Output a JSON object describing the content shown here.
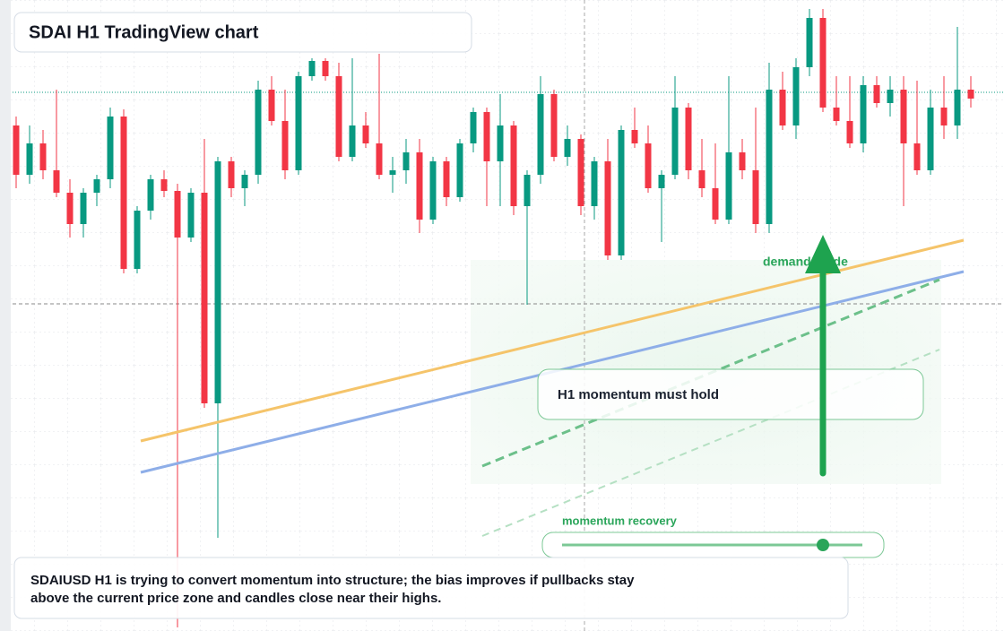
{
  "chart_data": {
    "type": "candlestick",
    "title": "SDAI H1 TradingView chart",
    "annotations": {
      "guide": "demand guide",
      "hold": "H1 momentum must hold",
      "recovery": "momentum recovery"
    },
    "description": [
      "SDAIUSD H1 is trying to convert momentum into structure; the bias improves if pullbacks stay",
      "above the current price zone and candles close near their highs."
    ],
    "up_color": "#089981",
    "down_color": "#f23645",
    "ylim": [
      0,
      700
    ],
    "open": [
      560,
      505,
      540,
      510,
      485,
      450,
      485,
      500,
      570,
      400,
      465,
      500,
      487,
      435,
      485,
      250,
      520,
      490,
      505,
      600,
      565,
      510,
      615,
      632,
      615,
      525,
      560,
      540,
      505,
      510,
      530,
      455,
      520,
      480,
      540,
      575,
      520,
      560,
      470,
      505,
      595,
      525,
      545,
      470,
      520,
      415,
      555,
      540,
      490,
      505,
      580,
      510,
      490,
      455,
      530,
      510,
      450,
      600,
      560,
      625,
      680,
      580,
      565,
      540,
      605,
      585,
      600,
      540,
      510,
      580,
      560,
      600
    ],
    "high": [
      570,
      560,
      555,
      600,
      500,
      490,
      505,
      580,
      578,
      470,
      505,
      510,
      495,
      490,
      545,
      525,
      525,
      510,
      610,
      615,
      600,
      620,
      635,
      635,
      630,
      635,
      575,
      640,
      525,
      545,
      545,
      525,
      525,
      545,
      580,
      580,
      595,
      565,
      510,
      615,
      600,
      560,
      550,
      525,
      545,
      560,
      580,
      560,
      510,
      615,
      585,
      545,
      540,
      615,
      545,
      580,
      630,
      620,
      635,
      690,
      690,
      615,
      615,
      615,
      615,
      615,
      615,
      610,
      600,
      615,
      670,
      615
    ],
    "low": [
      490,
      495,
      500,
      480,
      435,
      435,
      470,
      490,
      395,
      395,
      455,
      480,
      0,
      430,
      245,
      100,
      480,
      470,
      495,
      560,
      500,
      505,
      610,
      610,
      520,
      520,
      535,
      500,
      485,
      495,
      440,
      450,
      470,
      475,
      530,
      470,
      470,
      460,
      360,
      495,
      520,
      515,
      460,
      455,
      410,
      410,
      535,
      485,
      430,
      500,
      500,
      480,
      450,
      450,
      500,
      440,
      440,
      555,
      545,
      615,
      575,
      560,
      535,
      530,
      580,
      570,
      470,
      505,
      505,
      545,
      545,
      580
    ],
    "close": [
      505,
      540,
      510,
      485,
      450,
      485,
      500,
      570,
      400,
      465,
      500,
      487,
      435,
      485,
      250,
      520,
      490,
      505,
      600,
      565,
      510,
      615,
      632,
      615,
      525,
      560,
      540,
      505,
      510,
      530,
      455,
      520,
      480,
      540,
      575,
      520,
      560,
      470,
      505,
      595,
      525,
      545,
      470,
      520,
      415,
      555,
      540,
      490,
      505,
      580,
      510,
      490,
      455,
      530,
      510,
      450,
      600,
      560,
      625,
      680,
      580,
      565,
      540,
      605,
      585,
      600,
      540,
      510,
      580,
      560,
      600,
      590
    ]
  }
}
